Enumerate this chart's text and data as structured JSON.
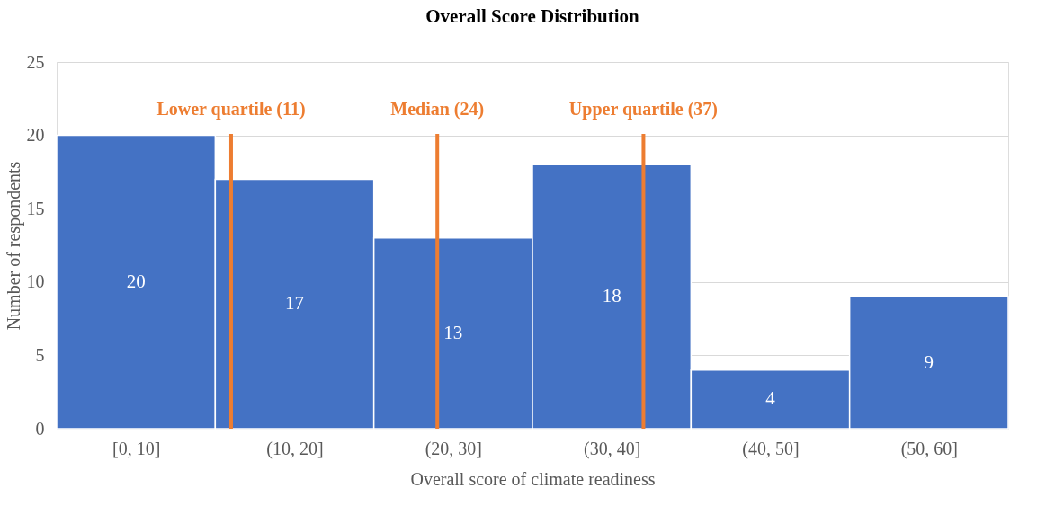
{
  "chart_data": {
    "type": "histogram",
    "title": "Overall Score Distribution",
    "xlabel": "Overall score of climate readiness",
    "ylabel": "Number of respondents",
    "bins": [
      0,
      10,
      20,
      30,
      40,
      50,
      60
    ],
    "values": [
      20,
      17,
      13,
      18,
      4,
      9
    ],
    "color": "#4472c4",
    "xlim": [
      0,
      60
    ],
    "categories": [
      "[0, 10]",
      "(10, 20]",
      "(20, 30]",
      "(30, 40]",
      "(40, 50]",
      "(50, 60]"
    ],
    "ylim": [
      0,
      25
    ],
    "yticks": [
      0,
      5,
      10,
      15,
      20,
      25
    ],
    "grid": "y",
    "data_labels": true,
    "ref_lines": [
      {
        "axis": "x",
        "value": 11,
        "label": "Lower quartile (11)",
        "color": "#ed7d31"
      },
      {
        "axis": "x",
        "value": 24,
        "label": "Median (24)",
        "color": "#ed7d31"
      },
      {
        "axis": "x",
        "value": 37,
        "label": "Upper quartile (37)",
        "color": "#ed7d31"
      }
    ]
  }
}
